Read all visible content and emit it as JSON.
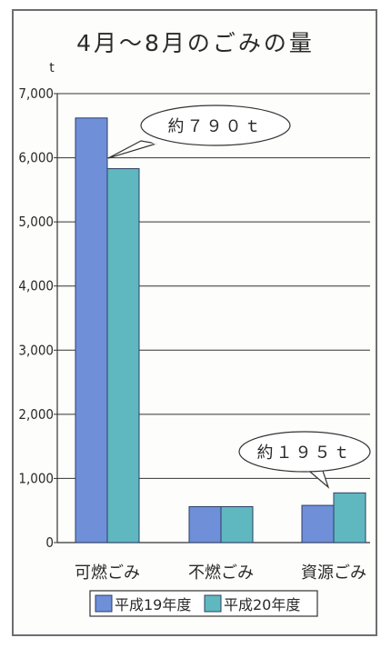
{
  "chart_data": {
    "type": "bar",
    "title": "4月～8月のごみの量",
    "y_unit": "t",
    "ylim": [
      0,
      7000
    ],
    "yticks": [
      "0",
      "1,000",
      "2,000",
      "3,000",
      "4,000",
      "5,000",
      "6,000",
      "7,000"
    ],
    "ytick_values": [
      0,
      1000,
      2000,
      3000,
      4000,
      5000,
      6000,
      7000
    ],
    "categories": [
      "可燃ごみ",
      "不燃ごみ",
      "資源ごみ"
    ],
    "series": [
      {
        "name": "平成19年度",
        "values": [
          6620,
          560,
          580
        ],
        "color": "#6f8fd8"
      },
      {
        "name": "平成20年度",
        "values": [
          5830,
          560,
          775
        ],
        "color": "#5fb8bf"
      }
    ],
    "annotations": [
      {
        "text": "約７９０ｔ",
        "category": "可燃ごみ"
      },
      {
        "text": "約１９５ｔ",
        "category": "資源ごみ"
      }
    ],
    "grid": "horizontal",
    "legend_position": "bottom"
  },
  "colors": {
    "grid": "#333333",
    "bar_stroke": "#2c3e66",
    "legend_border": "#333333"
  }
}
